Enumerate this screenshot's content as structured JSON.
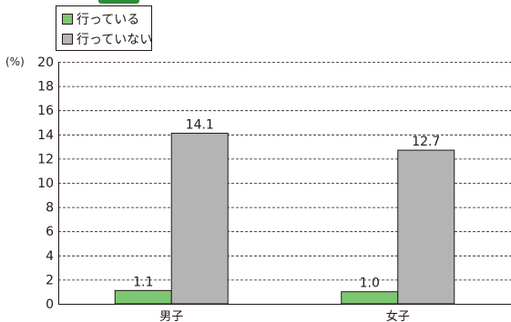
{
  "chart_data": {
    "type": "bar",
    "categories": [
      "男子",
      "女子"
    ],
    "series": [
      {
        "name": "行っている",
        "values": [
          1.1,
          1.0
        ],
        "color": "#7ec772"
      },
      {
        "name": "行っていない",
        "values": [
          14.1,
          12.7
        ],
        "color": "#b4b4b5"
      }
    ],
    "unit": "(%)",
    "ylim": [
      0,
      20
    ],
    "yticks": [
      0,
      2,
      4,
      6,
      8,
      10,
      12,
      14,
      16,
      18,
      20
    ],
    "grid": true,
    "grid_style": "dashed",
    "legend_position": "top-left",
    "data_labels": [
      "1.1",
      "14.1",
      "1.0",
      "12.7"
    ]
  }
}
